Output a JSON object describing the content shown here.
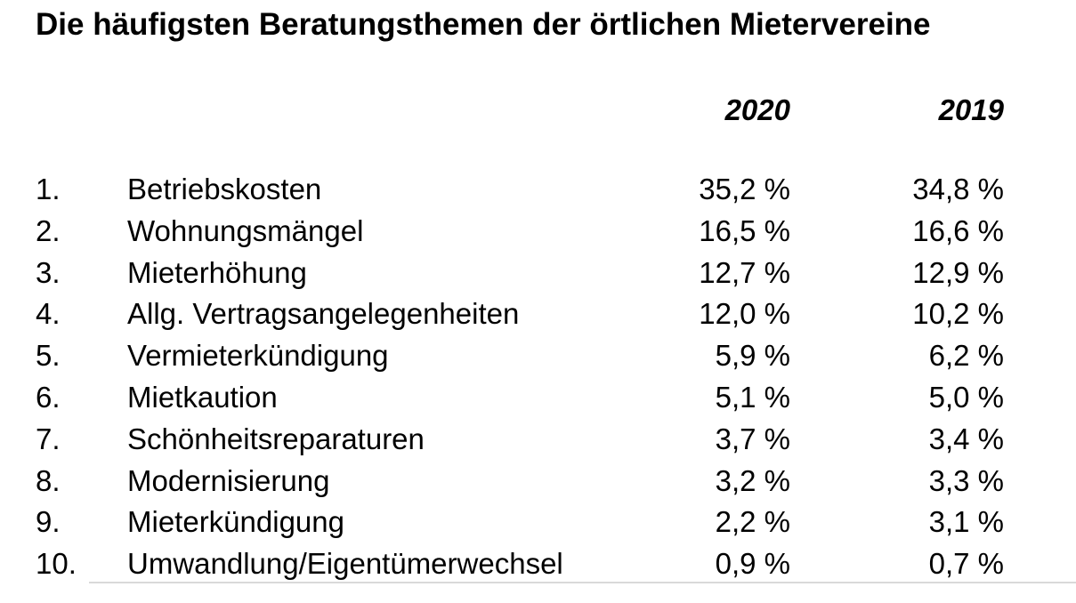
{
  "page": {
    "title": "Die häufigsten Beratungsthemen der örtlichen Mietervereine"
  },
  "colors": {
    "text": "#000000",
    "background": "#ffffff",
    "divider": "#d9d9d9"
  },
  "table": {
    "columns": {
      "c2020": "2020",
      "c2019": "2019"
    },
    "rows": [
      {
        "rank": "1.",
        "topic": "Betriebskosten",
        "p2020": "35,2 %",
        "p2019": "34,8 %"
      },
      {
        "rank": "2.",
        "topic": "Wohnungsmängel",
        "p2020": "16,5 %",
        "p2019": "16,6 %"
      },
      {
        "rank": "3.",
        "topic": "Mieterhöhung",
        "p2020": "12,7 %",
        "p2019": "12,9 %"
      },
      {
        "rank": "4.",
        "topic": "Allg. Vertragsangelegenheiten",
        "p2020": "12,0 %",
        "p2019": "10,2 %"
      },
      {
        "rank": "5.",
        "topic": "Vermieterkündigung",
        "p2020": "5,9 %",
        "p2019": "6,2 %"
      },
      {
        "rank": "6.",
        "topic": "Mietkaution",
        "p2020": "5,1 %",
        "p2019": "5,0 %"
      },
      {
        "rank": "7.",
        "topic": "Schönheitsreparaturen",
        "p2020": "3,7 %",
        "p2019": "3,4 %"
      },
      {
        "rank": "8.",
        "topic": "Modernisierung",
        "p2020": "3,2 %",
        "p2019": "3,3 %"
      },
      {
        "rank": "9.",
        "topic": "Mieterkündigung",
        "p2020": "2,2 %",
        "p2019": "3,1 %"
      },
      {
        "rank": "10.",
        "topic": "Umwandlung/Eigentümerwechsel",
        "p2020": "0,9 %",
        "p2019": "0,7 %"
      }
    ]
  },
  "chart_data": {
    "type": "table",
    "title": "Die häufigsten Beratungsthemen der örtlichen Mietervereine",
    "categories": [
      "Betriebskosten",
      "Wohnungsmängel",
      "Mieterhöhung",
      "Allg. Vertragsangelegenheiten",
      "Vermieterkündigung",
      "Mietkaution",
      "Schönheitsreparaturen",
      "Modernisierung",
      "Mieterkündigung",
      "Umwandlung/Eigentümerwechsel"
    ],
    "series": [
      {
        "name": "2020",
        "unit": "%",
        "values": [
          35.2,
          16.5,
          12.7,
          12.0,
          5.9,
          5.1,
          3.7,
          3.2,
          2.2,
          0.9
        ]
      },
      {
        "name": "2019",
        "unit": "%",
        "values": [
          34.8,
          16.6,
          12.9,
          10.2,
          6.2,
          5.0,
          3.4,
          3.3,
          3.1,
          0.7
        ]
      }
    ],
    "layout": {
      "ranked": true,
      "value_format": "decimal-comma percent",
      "columns_right_aligned": true
    }
  }
}
